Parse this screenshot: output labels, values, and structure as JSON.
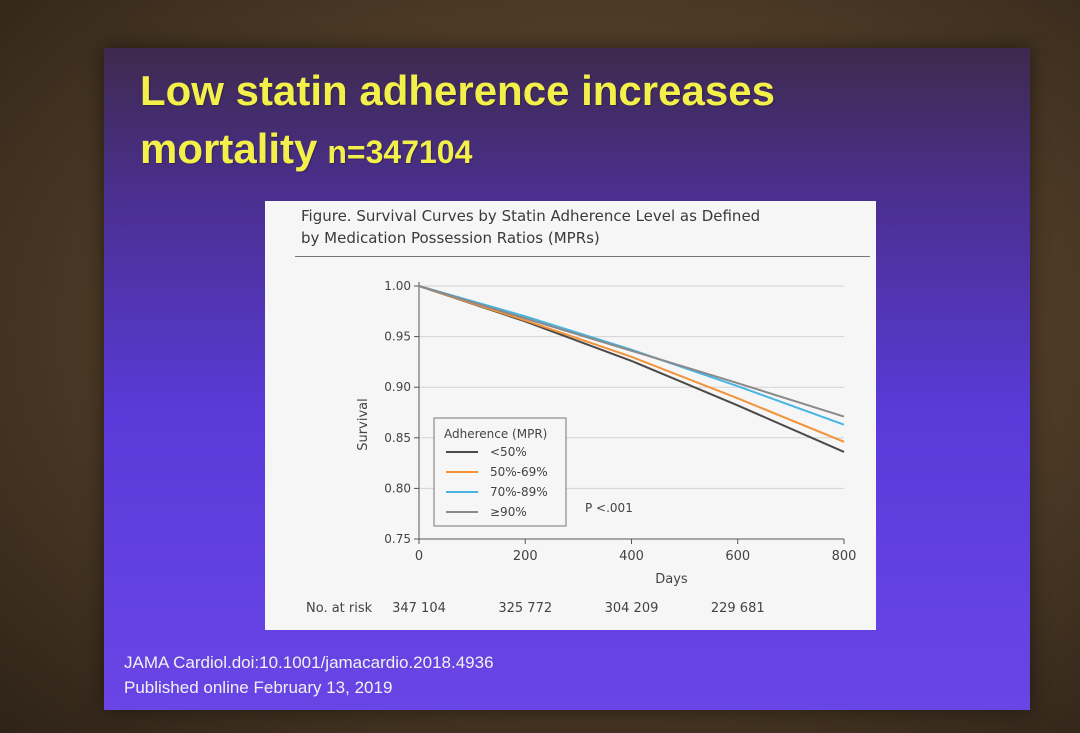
{
  "slide": {
    "title_line1": "Low statin adherence increases",
    "title_line2": "mortality",
    "title_n": "n=347104",
    "citation_line1": "JAMA Cardiol.doi:10.1001/jamacardio.2018.4936",
    "citation_line2": "Published online February 13, 2019"
  },
  "figure": {
    "caption_line1": "Figure. Survival Curves by Statin Adherence Level as Defined",
    "caption_line2": "by Medication Possession Ratios (MPRs)"
  },
  "chart_data": {
    "type": "line",
    "xlabel": "Days",
    "ylabel": "Survival",
    "xlim": [
      0,
      800
    ],
    "ylim": [
      0.75,
      1.0
    ],
    "x_ticks": [
      0,
      200,
      400,
      600,
      800
    ],
    "y_ticks": [
      0.75,
      0.8,
      0.85,
      0.9,
      0.95,
      1.0
    ],
    "y_tick_labels": [
      "0.75",
      "0.80",
      "0.85",
      "0.90",
      "0.95",
      "1.00"
    ],
    "grid": "horizontal",
    "legend_title": "Adherence (MPR)",
    "legend_placement": "bottom-left",
    "annotation": "P <.001",
    "colors": {
      "lt50": "#4a4a4a",
      "50_69": "#f2933a",
      "70_89": "#49b5e2",
      "ge90": "#8a8a8a"
    },
    "series": [
      {
        "name": "<50%",
        "color": "#4a4a4a",
        "x": [
          0,
          200,
          400,
          600,
          800
        ],
        "y": [
          1.0,
          0.965,
          0.926,
          0.882,
          0.836
        ]
      },
      {
        "name": "50%-69%",
        "color": "#f2933a",
        "x": [
          0,
          200,
          400,
          600,
          800
        ],
        "y": [
          1.0,
          0.966,
          0.93,
          0.889,
          0.846
        ]
      },
      {
        "name": "70%-89%",
        "color": "#49b5e2",
        "x": [
          0,
          200,
          400,
          600,
          800
        ],
        "y": [
          1.0,
          0.97,
          0.937,
          0.901,
          0.863
        ]
      },
      {
        "name": "≥90%",
        "color": "#8a8a8a",
        "x": [
          0,
          200,
          400,
          600,
          800
        ],
        "y": [
          1.0,
          0.968,
          0.936,
          0.904,
          0.871
        ]
      }
    ],
    "at_risk_label": "No. at risk",
    "at_risk": [
      {
        "x": 0,
        "label": "347 104"
      },
      {
        "x": 200,
        "label": "325 772"
      },
      {
        "x": 400,
        "label": "304 209"
      },
      {
        "x": 600,
        "label": "229 681"
      }
    ]
  }
}
